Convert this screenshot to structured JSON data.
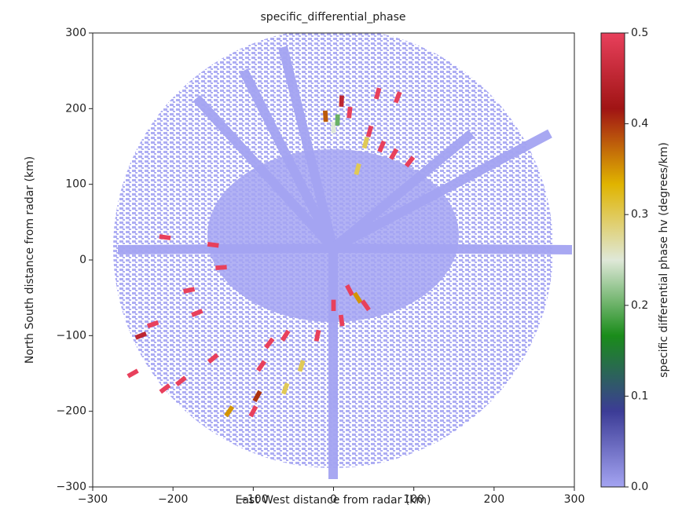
{
  "chart_data": {
    "type": "ppi",
    "title": "specific_differential_phase",
    "x_label": "East West distance from radar (km)",
    "y_label": "North South distance from radar (km)",
    "xlim": [
      -300,
      300
    ],
    "ylim": [
      -300,
      300
    ],
    "xticks": [
      {
        "value": -300,
        "label": "−300"
      },
      {
        "value": -200,
        "label": "−200"
      },
      {
        "value": -100,
        "label": "−100"
      },
      0,
      100,
      200,
      300
    ],
    "yticks": [
      {
        "value": -300,
        "label": "−300"
      },
      {
        "value": -200,
        "label": "−200"
      },
      {
        "value": -100,
        "label": "−100"
      },
      0,
      100,
      200,
      300
    ],
    "x": [
      10,
      20,
      55,
      80,
      45,
      60,
      75,
      95,
      0,
      5,
      -10,
      40,
      30,
      -210,
      -150,
      -140,
      -180,
      -170,
      -240,
      -225,
      -250,
      -210,
      -190,
      -150,
      -90,
      -80,
      -60,
      -40,
      -20,
      0,
      10,
      20,
      -95,
      -100,
      -130,
      -60,
      30,
      40
    ],
    "y": [
      210,
      195,
      220,
      215,
      170,
      150,
      140,
      130,
      175,
      185,
      190,
      155,
      120,
      30,
      20,
      -10,
      -40,
      -70,
      -100,
      -85,
      -150,
      -170,
      -160,
      -130,
      -140,
      -110,
      -100,
      -140,
      -100,
      -60,
      -80,
      -40,
      -180,
      -200,
      -200,
      -170,
      -50,
      -60
    ],
    "values": [
      0.45,
      0.5,
      0.5,
      0.5,
      0.5,
      0.5,
      0.5,
      0.5,
      0.25,
      0.2,
      0.38,
      0.3,
      0.3,
      0.5,
      0.5,
      0.5,
      0.5,
      0.5,
      0.45,
      0.5,
      0.5,
      0.5,
      0.5,
      0.5,
      0.5,
      0.5,
      0.5,
      0.3,
      0.5,
      0.5,
      0.5,
      0.5,
      0.4,
      0.5,
      0.35,
      0.3,
      0.35,
      0.5
    ],
    "colorbar": {
      "label": "specific differential phase hv (degrees/km)",
      "clim": [
        0,
        0.5
      ],
      "ticks": [
        {
          "value": 0,
          "label": "0.0"
        },
        0.1,
        0.2,
        0.3,
        0.4,
        0.5
      ],
      "colormap": [
        "#a4a4f2",
        "#3c3c96",
        "#1a8c1a",
        "#dfe8d8",
        "#e0b400",
        "#a01414",
        "#e8405c"
      ]
    }
  }
}
